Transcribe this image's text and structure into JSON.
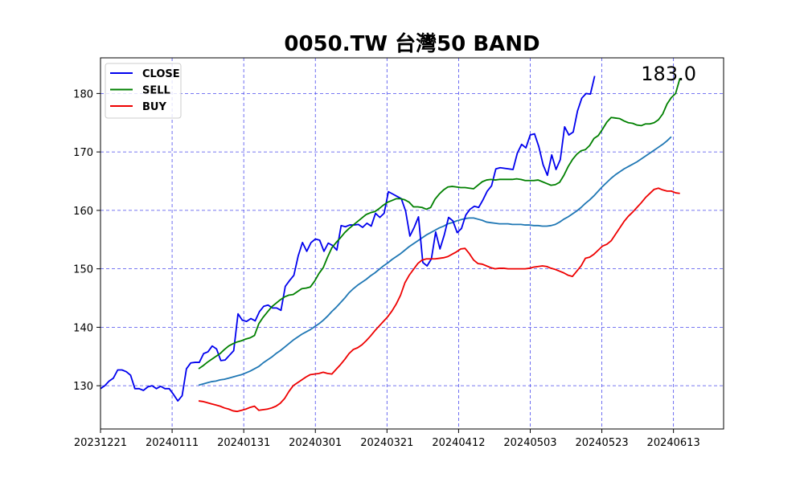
{
  "chart_data": {
    "type": "line",
    "title": "0050.TW 台灣50 BAND",
    "annotation": "183.0",
    "xlim": [
      0,
      87
    ],
    "ylim": [
      122.6,
      186.1
    ],
    "x_ticks": [
      {
        "label": "20231221",
        "x": 0
      },
      {
        "label": "20240111",
        "x": 10
      },
      {
        "label": "20240131",
        "x": 20
      },
      {
        "label": "20240301",
        "x": 30
      },
      {
        "label": "20240321",
        "x": 40
      },
      {
        "label": "20240412",
        "x": 50
      },
      {
        "label": "20240503",
        "x": 60
      },
      {
        "label": "20240523",
        "x": 70
      },
      {
        "label": "20240613",
        "x": 80
      }
    ],
    "y_ticks": [
      130,
      140,
      150,
      160,
      170,
      180
    ],
    "grid": true,
    "legend_position": "upper-left",
    "series": [
      {
        "name": "CLOSE",
        "color": "#0000ee",
        "x0": 0,
        "values": [
          129.5,
          130.0,
          130.8,
          131.3,
          132.7,
          132.7,
          132.4,
          131.8,
          129.5,
          129.5,
          129.2,
          129.8,
          130.0,
          129.5,
          129.9,
          129.5,
          129.5,
          128.5,
          127.4,
          128.3,
          132.9,
          133.9,
          134.0,
          134.0,
          135.5,
          135.8,
          136.8,
          136.3,
          134.3,
          134.4,
          135.2,
          136.0,
          142.3,
          141.2,
          141.0,
          141.5,
          141.1,
          142.7,
          143.6,
          143.8,
          143.3,
          143.3,
          142.9,
          147.0,
          148.0,
          148.9,
          152.2,
          154.5,
          153.0,
          154.5,
          155.1,
          154.9,
          153.0,
          154.4,
          154.0,
          153.2,
          157.4,
          157.2,
          157.5,
          157.5,
          157.6,
          157.1,
          157.8,
          157.3,
          159.5,
          158.8,
          159.5,
          163.2,
          162.8,
          162.4,
          162.0,
          159.9,
          155.6,
          157.1,
          158.9,
          151.1,
          150.5,
          151.7,
          156.3,
          153.4,
          155.8,
          158.8,
          158.2,
          156.2,
          156.9,
          159.2,
          160.2,
          160.7,
          160.5,
          161.8,
          163.3,
          164.2,
          167.1,
          167.3,
          167.2,
          167.1,
          167.0,
          169.8,
          171.3,
          170.7,
          172.9,
          173.1,
          170.9,
          167.8,
          166.0,
          169.5,
          167.0,
          168.7,
          174.3,
          172.9,
          173.4,
          177.0,
          179.2,
          180.0,
          179.9,
          183.0
        ]
      },
      {
        "name": "SELL",
        "color": "#008000",
        "x0": 13.7,
        "values": [
          132.9,
          133.4,
          134.0,
          134.5,
          135.0,
          135.5,
          136.2,
          136.8,
          137.2,
          137.5,
          137.7,
          138.0,
          138.2,
          138.6,
          140.6,
          141.7,
          142.6,
          143.5,
          144.1,
          144.7,
          145.2,
          145.5,
          145.6,
          146.1,
          146.6,
          146.7,
          146.9,
          147.9,
          149.2,
          150.2,
          152.0,
          153.6,
          154.5,
          155.3,
          156.2,
          156.9,
          157.5,
          158.1,
          158.7,
          159.3,
          159.6,
          159.8,
          160.3,
          160.9,
          161.4,
          161.7,
          162.0,
          162.0,
          161.8,
          161.4,
          160.6,
          160.6,
          160.5,
          160.2,
          160.5,
          161.9,
          162.8,
          163.5,
          164.0,
          164.1,
          164.0,
          163.9,
          163.9,
          163.8,
          163.7,
          164.3,
          164.9,
          165.2,
          165.3,
          165.2,
          165.3,
          165.3,
          165.3,
          165.3,
          165.4,
          165.3,
          165.1,
          165.1,
          165.1,
          165.2,
          164.9,
          164.6,
          164.3,
          164.4,
          164.8,
          166.0,
          167.5,
          168.7,
          169.6,
          170.2,
          170.4,
          171.1,
          172.3,
          172.8,
          173.9,
          175.1,
          175.9,
          175.8,
          175.7,
          175.3,
          175.0,
          174.9,
          174.6,
          174.5,
          174.8,
          174.8,
          175.0,
          175.5,
          176.5,
          178.2,
          179.3,
          180.0,
          182.6
        ]
      },
      {
        "name": "BUY",
        "color": "#ee0000",
        "x0": 13.7,
        "values": [
          127.4,
          127.3,
          127.1,
          126.9,
          126.7,
          126.5,
          126.2,
          126.0,
          125.7,
          125.6,
          125.8,
          126.0,
          126.3,
          126.5,
          125.8,
          125.9,
          126.0,
          126.2,
          126.5,
          127.0,
          127.8,
          129.0,
          130.0,
          130.5,
          131.0,
          131.5,
          131.9,
          132.0,
          132.1,
          132.3,
          132.1,
          132.0,
          132.8,
          133.6,
          134.5,
          135.5,
          136.2,
          136.5,
          137.0,
          137.7,
          138.5,
          139.4,
          140.2,
          141.0,
          141.8,
          142.8,
          144.0,
          145.5,
          147.6,
          148.9,
          149.9,
          150.9,
          151.5,
          151.7,
          151.7,
          151.7,
          151.8,
          151.9,
          152.1,
          152.5,
          152.9,
          153.4,
          153.5,
          152.6,
          151.5,
          150.9,
          150.8,
          150.5,
          150.2,
          150.0,
          150.1,
          150.1,
          150.0,
          150.0,
          150.0,
          150.0,
          150.0,
          150.1,
          150.3,
          150.4,
          150.5,
          150.4,
          150.1,
          149.9,
          149.6,
          149.3,
          148.9,
          148.7,
          149.6,
          150.5,
          151.8,
          152.0,
          152.5,
          153.2,
          153.9,
          154.2,
          154.8,
          155.9,
          157.0,
          158.1,
          159.0,
          159.7,
          160.5,
          161.3,
          162.2,
          162.9,
          163.6,
          163.8,
          163.5,
          163.3,
          163.3,
          163.0,
          162.9
        ]
      },
      {
        "name": "",
        "color": "#1f77b4",
        "x0": 13.7,
        "values": [
          130.1,
          130.3,
          130.5,
          130.7,
          130.8,
          131.0,
          131.1,
          131.3,
          131.5,
          131.7,
          131.9,
          132.2,
          132.5,
          132.9,
          133.3,
          133.9,
          134.4,
          134.9,
          135.5,
          136.0,
          136.6,
          137.2,
          137.8,
          138.3,
          138.8,
          139.2,
          139.6,
          140.1,
          140.6,
          141.2,
          141.9,
          142.7,
          143.4,
          144.2,
          145.0,
          145.9,
          146.6,
          147.2,
          147.7,
          148.2,
          148.8,
          149.3,
          149.9,
          150.5,
          151.0,
          151.6,
          152.1,
          152.6,
          153.2,
          153.8,
          154.3,
          154.8,
          155.3,
          155.8,
          156.2,
          156.6,
          157.0,
          157.3,
          157.7,
          157.9,
          158.2,
          158.4,
          158.6,
          158.7,
          158.7,
          158.5,
          158.3,
          158.0,
          157.9,
          157.8,
          157.7,
          157.7,
          157.7,
          157.6,
          157.6,
          157.6,
          157.5,
          157.5,
          157.4,
          157.4,
          157.3,
          157.3,
          157.4,
          157.6,
          158.0,
          158.5,
          158.9,
          159.4,
          159.9,
          160.5,
          161.2,
          161.8,
          162.5,
          163.3,
          164.1,
          164.8,
          165.5,
          166.1,
          166.6,
          167.1,
          167.5,
          167.9,
          168.3,
          168.8,
          169.3,
          169.8,
          170.3,
          170.8,
          171.3,
          171.9,
          172.6
        ]
      }
    ]
  }
}
